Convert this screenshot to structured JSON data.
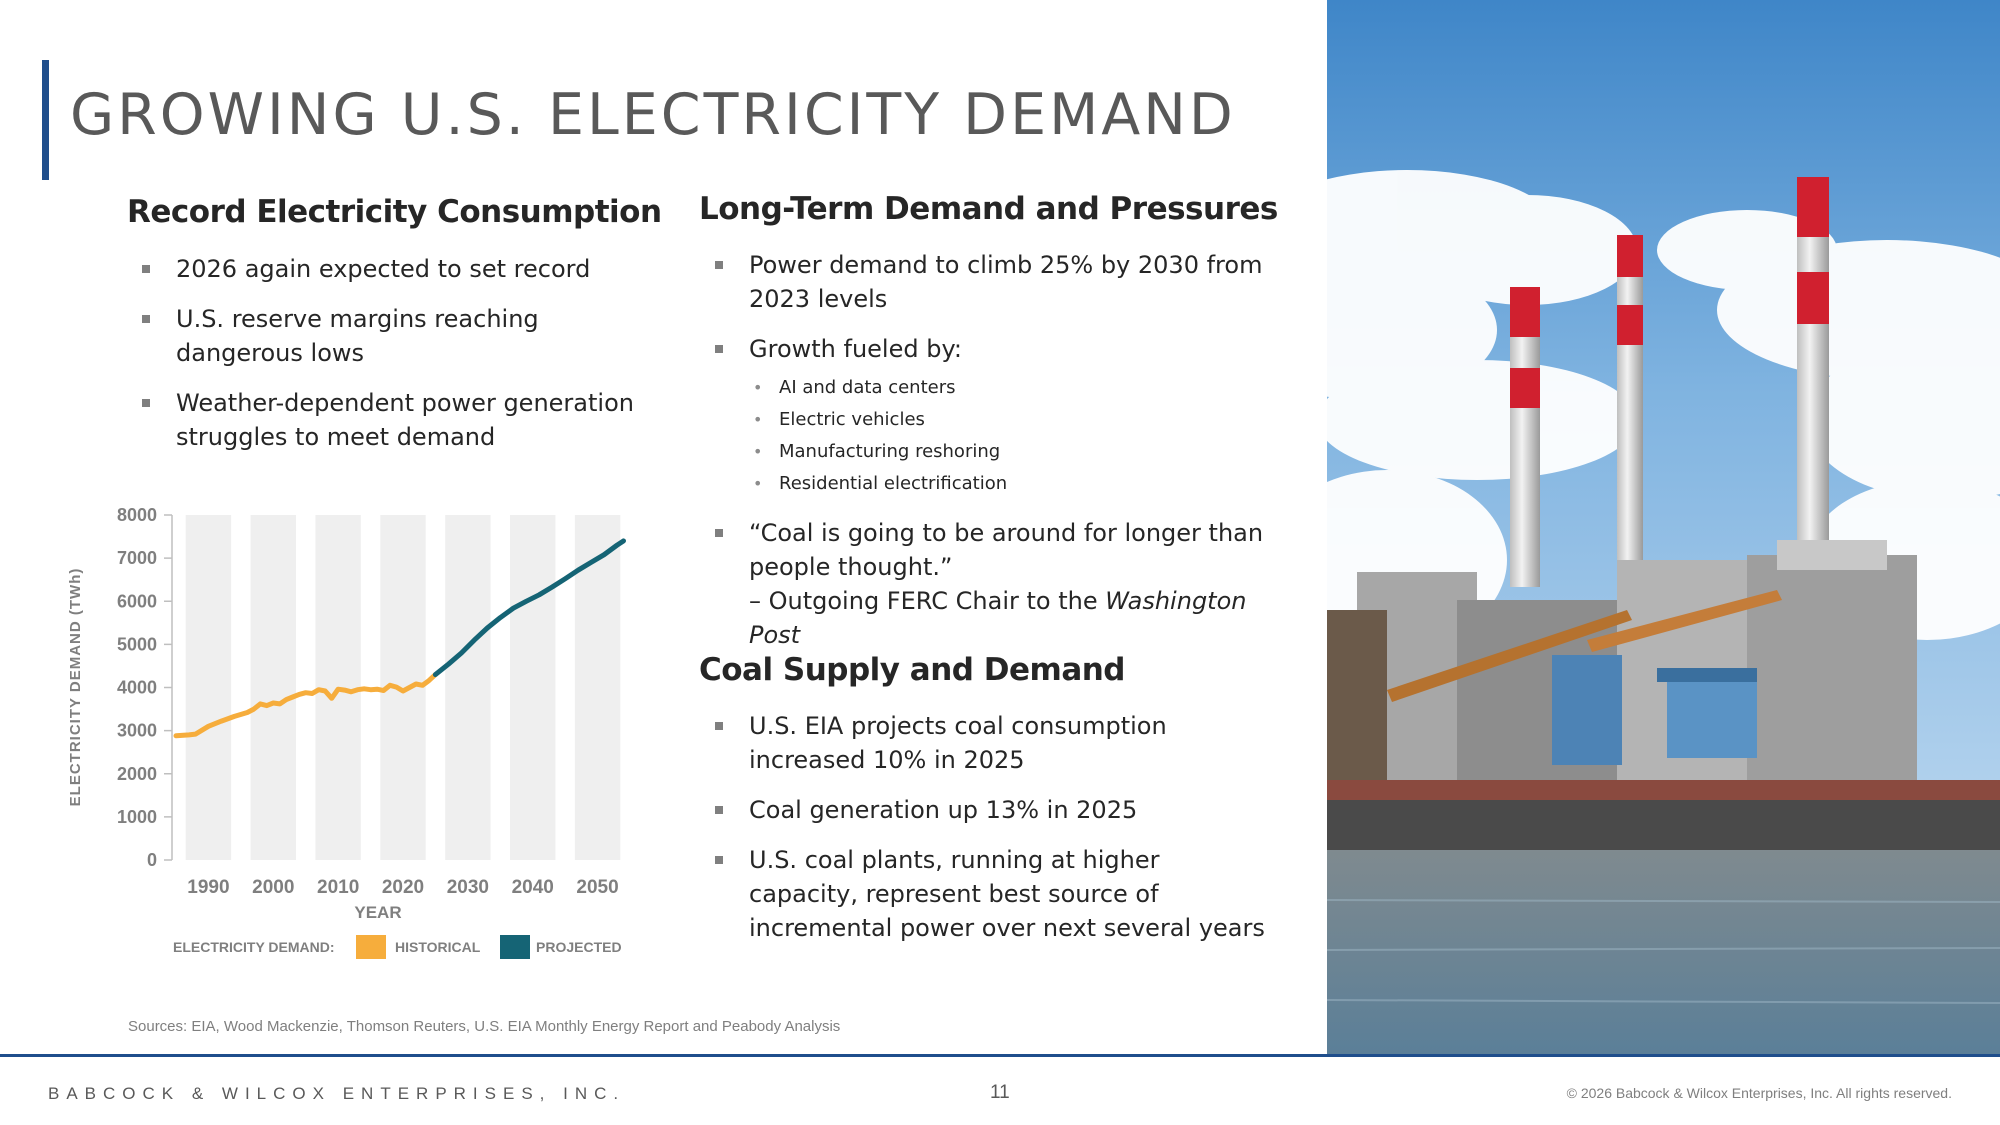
{
  "slide": {
    "title": "GROWING U.S. ELECTRICITY DEMAND",
    "accent_color": "#1f4e8c"
  },
  "left": {
    "heading": "Record Electricity Consumption",
    "bullets": [
      "2026 again expected to set record",
      "U.S. reserve margins reaching dangerous lows",
      "Weather-dependent power generation struggles to meet demand"
    ]
  },
  "right": {
    "heading1": "Long-Term Demand and Pressures",
    "bullet1": "Power demand to climb 25% by 2030 from 2023 levels",
    "bullet2": "Growth fueled by:",
    "sub_bullets": [
      "AI and data centers",
      "Electric vehicles",
      "Manufacturing reshoring",
      "Residential electrification"
    ],
    "quote": "“Coal is going to be around for longer than people thought.”",
    "attribution_prefix": "– Outgoing FERC Chair to the ",
    "attribution_source": "Washington Post",
    "heading2": "Coal Supply and Demand",
    "coal_bullets": [
      "U.S. EIA projects coal consumption increased 10% in 2025",
      "Coal generation up 13% in 2025",
      "U.S. coal plants, running at higher capacity, represent best source of incremental power over next several years"
    ]
  },
  "chart_data": {
    "type": "line",
    "xlabel": "YEAR",
    "ylabel": "ELECTRICITY DEMAND (TWh)",
    "xlim": [
      1985,
      2055
    ],
    "ylim": [
      0,
      8000
    ],
    "y_ticks": [
      "0",
      "1000",
      "2000",
      "3000",
      "4000",
      "5000",
      "6000",
      "7000",
      "8000"
    ],
    "x_ticks": [
      "1990",
      "2000",
      "2010",
      "2020",
      "2030",
      "2040",
      "2050"
    ],
    "legend_label": "ELECTRICITY DEMAND:",
    "series": [
      {
        "name": "HISTORICAL",
        "color": "#f6ad3c",
        "x": [
          1985,
          1987,
          1988,
          1990,
          1992,
          1994,
          1996,
          1997,
          1998,
          1999,
          2000,
          2001,
          2002,
          2003,
          2004,
          2005,
          2006,
          2007,
          2008,
          2009,
          2010,
          2011,
          2012,
          2013,
          2014,
          2015,
          2016,
          2017,
          2018,
          2019,
          2020,
          2021,
          2022,
          2023,
          2024,
          2025
        ],
        "y": [
          2880,
          2900,
          2920,
          3100,
          3220,
          3330,
          3420,
          3500,
          3620,
          3580,
          3640,
          3620,
          3720,
          3780,
          3840,
          3880,
          3860,
          3950,
          3920,
          3750,
          3960,
          3940,
          3900,
          3950,
          3970,
          3950,
          3960,
          3930,
          4050,
          4010,
          3920,
          4000,
          4080,
          4050,
          4160,
          4300
        ]
      },
      {
        "name": "PROJECTED",
        "color": "#156475",
        "x": [
          2025,
          2027,
          2029,
          2031,
          2033,
          2035,
          2037,
          2039,
          2041,
          2043,
          2045,
          2047,
          2049,
          2051,
          2053,
          2054
        ],
        "y": [
          4300,
          4540,
          4800,
          5100,
          5380,
          5620,
          5840,
          6000,
          6150,
          6330,
          6520,
          6720,
          6900,
          7080,
          7300,
          7400
        ]
      }
    ]
  },
  "sources": "Sources: EIA, Wood Mackenzie, Thomson Reuters, U.S. EIA Monthly Energy Report and Peabody Analysis",
  "footer": {
    "company": "BABCOCK & WILCOX ENTERPRISES, INC.",
    "page": "11",
    "copyright": "© 2026 Babcock & Wilcox Enterprises, Inc. All rights reserved."
  }
}
